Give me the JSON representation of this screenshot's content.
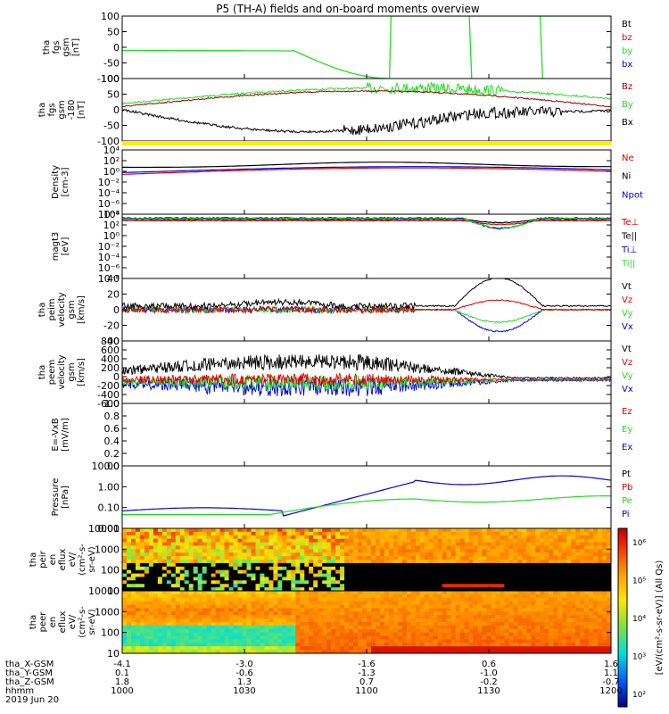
{
  "title": "P5 (TH-A) fields and on-board moments overview",
  "colors": {
    "black": "#000000",
    "red": "#dd0000",
    "green": "#22dd22",
    "blue": "#0000dd",
    "darkred": "#990000",
    "yellow": "#ffee00"
  },
  "panels": [
    {
      "ylabel": [
        "tha",
        "fgs",
        "gsm",
        "[nT]"
      ],
      "yticks": [
        "100",
        "50",
        "0",
        "-50",
        "-100"
      ],
      "legend": [
        {
          "text": "Bt",
          "color": "black"
        },
        {
          "text": "bz",
          "color": "red"
        },
        {
          "text": "by",
          "color": "green"
        },
        {
          "text": "bx",
          "color": "blue"
        }
      ]
    },
    {
      "ylabel": [
        "tha",
        "fgs",
        "gsm",
        "-180",
        "[nT]"
      ],
      "yticks": [
        "100",
        "50",
        "0",
        "-50",
        "-100"
      ],
      "legend": [
        {
          "text": "Bz",
          "color": "darkred"
        },
        {
          "text": "By",
          "color": "green"
        },
        {
          "text": "Bx",
          "color": "black"
        }
      ]
    },
    {
      "ylabel": [
        "Density",
        "[cm-3]"
      ],
      "yticks": [
        "10⁴",
        "10²",
        "10⁰",
        "10⁻²",
        "10⁻⁴",
        "10⁻⁶",
        "10⁻⁸"
      ],
      "legend": [
        {
          "text": "Ne",
          "color": "red"
        },
        {
          "text": "Ni",
          "color": "black"
        },
        {
          "text": "Npot",
          "color": "blue"
        }
      ]
    },
    {
      "ylabel": [
        "magt3",
        "[eV]"
      ],
      "yticks": [
        "10⁴",
        "10²",
        "10⁰",
        "10⁻²",
        "10⁻⁴",
        "10⁻⁶",
        "10⁻⁸"
      ],
      "legend": [
        {
          "text": "Te⊥",
          "color": "red"
        },
        {
          "text": "Te||",
          "color": "black"
        },
        {
          "text": "Ti⊥",
          "color": "blue"
        },
        {
          "text": "Ti||",
          "color": "green"
        }
      ]
    },
    {
      "ylabel": [
        "tha",
        "peim",
        "velocity",
        "gsm",
        "[km/s]"
      ],
      "yticks": [
        "40",
        "20",
        "0",
        "-20",
        "-40"
      ],
      "legend": [
        {
          "text": "Vt",
          "color": "black"
        },
        {
          "text": "Vz",
          "color": "red"
        },
        {
          "text": "Vy",
          "color": "green"
        },
        {
          "text": "Vx",
          "color": "blue"
        }
      ]
    },
    {
      "ylabel": [
        "tha",
        "peem",
        "velocity",
        "gsm",
        "[km/s]"
      ],
      "yticks": [
        "800",
        "600",
        "400",
        "200",
        "0",
        "-200",
        "-400",
        "-600"
      ],
      "legend": [
        {
          "text": "Vt",
          "color": "black"
        },
        {
          "text": "Vz",
          "color": "red"
        },
        {
          "text": "Vy",
          "color": "green"
        },
        {
          "text": "Vx",
          "color": "blue"
        }
      ]
    },
    {
      "ylabel": [
        "E=-VxB",
        "[mV/m]"
      ],
      "yticks": [
        "1.0",
        "0.8",
        "0.6",
        "0.4",
        "0.2",
        "0.0"
      ],
      "legend": [
        {
          "text": "Ez",
          "color": "red"
        },
        {
          "text": "Ey",
          "color": "green"
        },
        {
          "text": "Ex",
          "color": "blue"
        }
      ]
    },
    {
      "ylabel": [
        "Pressure",
        "[nPa]"
      ],
      "yticks": [
        "10.00",
        "1.00",
        "0.10",
        "0.01"
      ],
      "legend": [
        {
          "text": "Pt",
          "color": "black"
        },
        {
          "text": "Pb",
          "color": "red"
        },
        {
          "text": "Pe",
          "color": "green"
        },
        {
          "text": "Pi",
          "color": "blue"
        }
      ]
    },
    {
      "ylabel": [
        "tha",
        "peir",
        "en",
        "eflux",
        "eV/",
        "(cm²-s-",
        "sr-eV)"
      ],
      "yticks": [
        "10000",
        "1000",
        "100",
        "10"
      ],
      "legend": []
    },
    {
      "ylabel": [
        "tha",
        "peer",
        "en",
        "eflux",
        "eV/",
        "(cm²-s-",
        "sr-eV)"
      ],
      "yticks": [
        "10000",
        "1000",
        "100",
        "10"
      ],
      "legend": []
    }
  ],
  "colorbar": {
    "ticks": [
      "10⁶",
      "10⁵",
      "10⁴",
      "10³",
      "10²"
    ],
    "label": "[eV/(cm²-s-sr-eV)] (All Qs)"
  },
  "xaxis": {
    "rows": [
      {
        "label": "tha_X-GSM",
        "values": [
          "-4.1",
          "-3.0",
          "-1.6",
          "0.6",
          "1.6"
        ]
      },
      {
        "label": "tha_Y-GSM",
        "values": [
          "0.1",
          "-0.6",
          "-1.3",
          "-1.0",
          "1.1"
        ]
      },
      {
        "label": "tha_Z-GSM",
        "values": [
          "1.8",
          "1.3",
          "0.7",
          "-0.2",
          "-0.7"
        ]
      },
      {
        "label": "hhmm",
        "values": [
          "1000",
          "1030",
          "1100",
          "1130",
          "1200"
        ]
      }
    ],
    "date": "2019 Jun 20"
  },
  "chart_data": [
    {
      "type": "line",
      "panel": "fgs gsm",
      "xlabel": "hhmm",
      "x": [
        "1000",
        "1030",
        "1100",
        "1130",
        "1200"
      ],
      "ylim": [
        -100,
        100
      ],
      "series": [
        {
          "name": "by",
          "values": [
            -5,
            -60,
            -100,
            100,
            100
          ]
        }
      ]
    },
    {
      "type": "line",
      "panel": "fgs gsm -180",
      "ylim": [
        -120,
        100
      ],
      "series": [
        {
          "name": "Bz",
          "values": [
            0,
            10,
            30,
            40,
            30
          ]
        },
        {
          "name": "By",
          "values": [
            0,
            5,
            40,
            60,
            10
          ]
        },
        {
          "name": "Bx",
          "values": [
            0,
            -10,
            -60,
            -90,
            -20
          ]
        }
      ]
    },
    {
      "type": "line",
      "panel": "Density",
      "series": [
        {
          "name": "Ne",
          "values": [
            0.5,
            0.3,
            1,
            3,
            3
          ]
        },
        {
          "name": "Ni",
          "values": [
            2,
            1,
            5,
            10,
            5
          ]
        },
        {
          "name": "Npot",
          "values": [
            1,
            0.5,
            3,
            10,
            2
          ]
        }
      ]
    },
    {
      "type": "line",
      "panel": "magt3",
      "series": [
        {
          "name": "Te⊥",
          "values": [
            1000,
            800,
            700,
            300,
            700
          ]
        },
        {
          "name": "Ti⊥",
          "values": [
            1500,
            1200,
            1000,
            100,
            1000
          ]
        }
      ]
    },
    {
      "type": "line",
      "panel": "peim velocity",
      "ylim": [
        -40,
        40
      ],
      "series": [
        {
          "name": "Vt",
          "values": [
            2,
            8,
            2,
            38,
            3
          ]
        },
        {
          "name": "Vz",
          "values": [
            0,
            2,
            0,
            12,
            0
          ]
        },
        {
          "name": "Vy",
          "values": [
            0,
            -2,
            0,
            -12,
            -3
          ]
        },
        {
          "name": "Vx",
          "values": [
            0,
            -2,
            0,
            -28,
            -2
          ]
        }
      ]
    },
    {
      "type": "line",
      "panel": "peem velocity",
      "ylim": [
        -600,
        800
      ],
      "series": [
        {
          "name": "Vt",
          "values": [
            200,
            500,
            150,
            60,
            80
          ]
        },
        {
          "name": "Vz",
          "values": [
            50,
            100,
            0,
            0,
            0
          ]
        }
      ]
    },
    {
      "type": "line",
      "panel": "E=-VxB",
      "ylim": [
        0,
        1
      ],
      "series": []
    },
    {
      "type": "line",
      "panel": "Pressure",
      "yscale": "log",
      "ylim": [
        0.01,
        20
      ],
      "series": [
        {
          "name": "Pi",
          "values": [
            0.03,
            0.02,
            0.6,
            1.5,
            1
          ]
        },
        {
          "name": "Pe",
          "values": [
            0.02,
            0.02,
            0.1,
            0.2,
            0.1
          ]
        }
      ]
    },
    {
      "type": "heatmap",
      "panel": "peir en eflux",
      "ylim": [
        5,
        20000
      ]
    },
    {
      "type": "heatmap",
      "panel": "peer en eflux",
      "ylim": [
        5,
        20000
      ]
    }
  ]
}
